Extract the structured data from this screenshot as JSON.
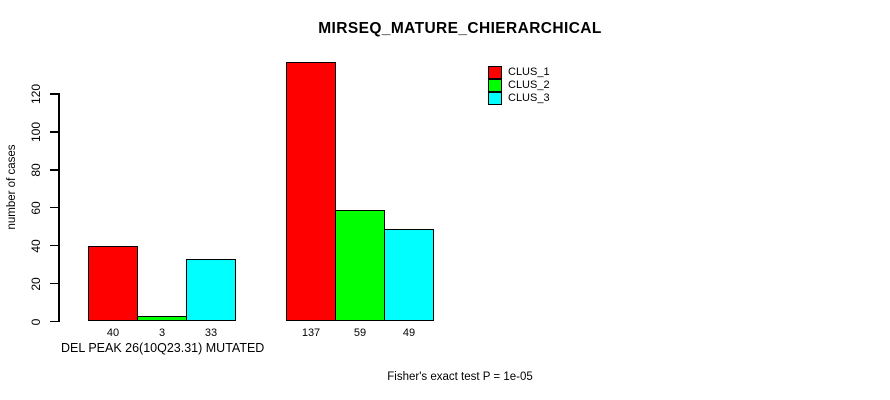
{
  "chart_data": {
    "type": "bar",
    "title": "MIRSEQ_MATURE_CHIERARCHICAL",
    "ylabel": "number of cases",
    "xlabel": "DEL PEAK 26(10Q23.31) MUTATED",
    "annotation": "Fisher's exact test P = 1e-05",
    "categories": [
      "DEL PEAK 26(10Q23.31) MUTATED",
      ""
    ],
    "series": [
      {
        "name": "CLUS_1",
        "color": "#ff0000",
        "values": [
          40,
          137
        ]
      },
      {
        "name": "CLUS_2",
        "color": "#00ff00",
        "values": [
          3,
          59
        ]
      },
      {
        "name": "CLUS_3",
        "color": "#00ffff",
        "values": [
          33,
          49
        ]
      }
    ],
    "yticks": [
      0,
      20,
      40,
      60,
      80,
      100,
      120
    ],
    "ylim": [
      0,
      137
    ],
    "grid": false,
    "legend_position": "top-right",
    "bar_border_color": "#000000"
  }
}
